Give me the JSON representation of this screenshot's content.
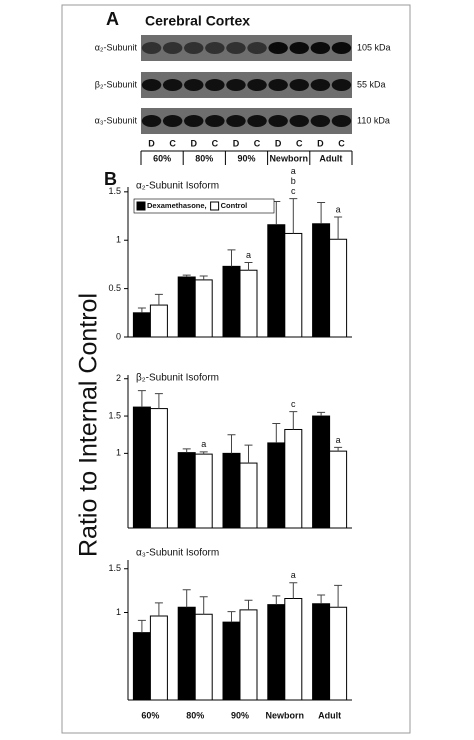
{
  "figure": {
    "panel_b_label": "B",
    "y_label": "Ratio to Internal Control"
  },
  "blot": {
    "label": "A",
    "title": "Cerebral Cortex",
    "rows": [
      {
        "label": "α₂-Subunit",
        "size": "105 kDa"
      },
      {
        "label": "β₂-Subunit",
        "size": "55 kDa"
      },
      {
        "label": "α₃-Subunit",
        "size": "110 kDa"
      }
    ],
    "lanes": [
      "D",
      "C",
      "D",
      "C",
      "D",
      "C",
      "D",
      "C",
      "D",
      "C"
    ],
    "groups": [
      "60%",
      "80%",
      "90%",
      "Newborn",
      "Adult"
    ]
  },
  "chart_data": [
    {
      "type": "bar",
      "title": "α₂-Subunit Isoform",
      "categories": [
        null,
        null,
        null,
        null,
        null
      ],
      "series": [
        {
          "name": "Dexamethasone,",
          "color": "#000000",
          "values": [
            0.25,
            0.62,
            0.73,
            1.16,
            1.17
          ],
          "errors": [
            0.05,
            0.02,
            0.17,
            0.24,
            0.22
          ],
          "annotations": [
            null,
            null,
            null,
            null,
            null
          ]
        },
        {
          "name": "Control",
          "color": "#ffffff",
          "values": [
            0.33,
            0.59,
            0.69,
            1.07,
            1.01
          ],
          "errors": [
            0.11,
            0.04,
            0.08,
            0.36,
            0.23
          ],
          "annotations": [
            null,
            null,
            [
              "a"
            ],
            [
              "a",
              "b",
              "c"
            ],
            [
              "a"
            ]
          ]
        }
      ],
      "ylim": [
        0,
        1.55
      ],
      "yticks": [
        0,
        0.5,
        1,
        1.5
      ],
      "legend": "top-left"
    },
    {
      "type": "bar",
      "title": "β₂-Subunit Isoform",
      "categories": [
        null,
        null,
        null,
        null,
        null
      ],
      "series": [
        {
          "name": null,
          "color": "#000000",
          "values": [
            1.62,
            1.01,
            1.0,
            1.14,
            1.5
          ],
          "errors": [
            0.22,
            0.05,
            0.25,
            0.26,
            0.05
          ],
          "annotations": [
            null,
            null,
            null,
            null,
            null
          ]
        },
        {
          "name": null,
          "color": "#ffffff",
          "values": [
            1.6,
            0.99,
            0.87,
            1.32,
            1.03
          ],
          "errors": [
            0.2,
            0.03,
            0.24,
            0.24,
            0.05
          ],
          "annotations": [
            null,
            [
              "a"
            ],
            null,
            [
              "c"
            ],
            [
              "a"
            ]
          ]
        }
      ],
      "ylim": [
        0,
        2.05
      ],
      "yticks": [
        1,
        1.5,
        2
      ]
    },
    {
      "type": "bar",
      "title": "α₃-Subunit Isoform",
      "categories": [
        "60%",
        "80%",
        "90%",
        "Newborn",
        "Adult"
      ],
      "series": [
        {
          "name": null,
          "color": "#000000",
          "values": [
            0.77,
            1.06,
            0.89,
            1.09,
            1.1
          ],
          "errors": [
            0.14,
            0.2,
            0.12,
            0.1,
            0.1
          ],
          "annotations": [
            null,
            null,
            null,
            null,
            null
          ]
        },
        {
          "name": null,
          "color": "#ffffff",
          "values": [
            0.96,
            0.98,
            1.03,
            1.16,
            1.06
          ],
          "errors": [
            0.15,
            0.2,
            0.11,
            0.18,
            0.25
          ],
          "annotations": [
            null,
            null,
            null,
            [
              "a"
            ],
            null
          ]
        }
      ],
      "ylim": [
        0,
        1.6
      ],
      "yticks": [
        1,
        1.5
      ]
    }
  ]
}
